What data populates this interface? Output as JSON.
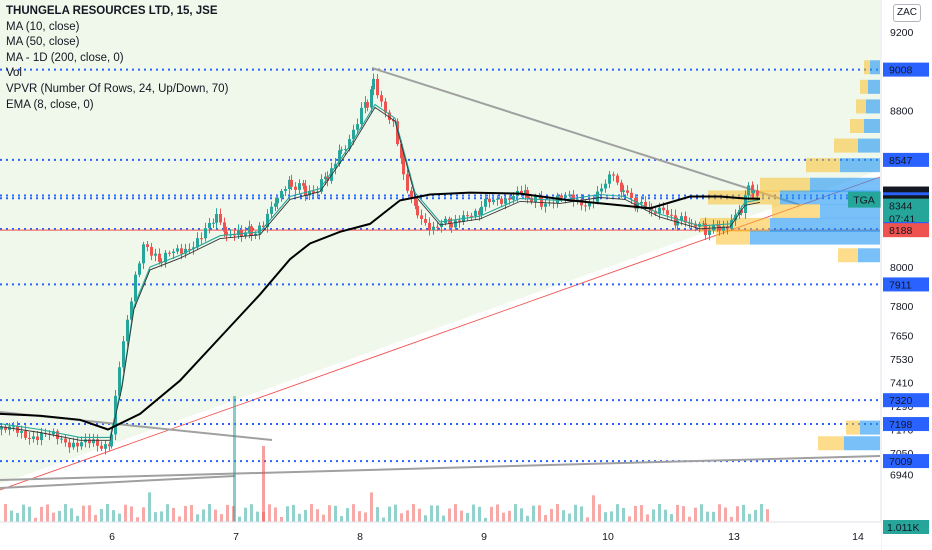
{
  "legend": {
    "title": "THUNGELA RESOURCES LTD, 15, JSE",
    "lines": [
      "MA (10, close)",
      "MA (50, close)",
      "MA - 1D (200, close, 0)",
      "Vol",
      "VPVR (Number Of Rows, 24, Up/Down, 70)",
      "EMA (8, close, 0)"
    ]
  },
  "currency_button": "ZAC",
  "colors": {
    "up": "#26a69a",
    "down": "#ef5350",
    "level_line": "#2962ff",
    "resistance_line": "#ef5350",
    "ma_black": "#000000",
    "trend_grey": "#a0a0a0",
    "vp_blue": "#2196f3",
    "vp_orange": "#fbc02d",
    "highlight_bg": "#e9f5e3"
  },
  "chart_data": {
    "type": "candlestick",
    "symbol": "TGA",
    "countdown": "07:41",
    "xlabels": [
      "6",
      "7",
      "8",
      "9",
      "10",
      "13",
      "14"
    ],
    "y_ticks": [
      9200,
      8800,
      8000,
      7800,
      7650,
      7530,
      7410,
      7290,
      7170,
      7050,
      6940
    ],
    "ylim": [
      6870,
      9340
    ],
    "levels": [
      9008,
      8547,
      8365,
      8351,
      8194,
      7911,
      7320,
      7198,
      7009
    ],
    "price_tags": [
      {
        "value": 9008,
        "style": "blue"
      },
      {
        "value": 8547,
        "style": "blue"
      },
      {
        "value": 8365,
        "style": "black"
      },
      {
        "value": 8361,
        "style": "blue"
      },
      {
        "value": 8351,
        "style": "black"
      },
      {
        "value": 8344,
        "style": "teal"
      },
      {
        "value": 8194,
        "style": "blue"
      },
      {
        "value": 8188,
        "style": "red"
      },
      {
        "value": 7911,
        "style": "blue"
      },
      {
        "value": 7320,
        "style": "blue"
      },
      {
        "value": 7198,
        "style": "blue"
      },
      {
        "value": 7009,
        "style": "blue"
      }
    ],
    "volume_label": "1.011K",
    "price_path": [
      [
        0,
        7170
      ],
      [
        20,
        7150
      ],
      [
        40,
        7140
      ],
      [
        60,
        7120
      ],
      [
        80,
        7100
      ],
      [
        100,
        7080
      ],
      [
        110,
        7130
      ],
      [
        118,
        7500
      ],
      [
        126,
        7750
      ],
      [
        134,
        7960
      ],
      [
        142,
        8100
      ],
      [
        150,
        8050
      ],
      [
        160,
        8030
      ],
      [
        180,
        8090
      ],
      [
        200,
        8150
      ],
      [
        215,
        8240
      ],
      [
        225,
        8160
      ],
      [
        240,
        8150
      ],
      [
        250,
        8180
      ],
      [
        262,
        8200
      ],
      [
        276,
        8350
      ],
      [
        290,
        8420
      ],
      [
        304,
        8400
      ],
      [
        316,
        8390
      ],
      [
        326,
        8470
      ],
      [
        340,
        8600
      ],
      [
        356,
        8740
      ],
      [
        366,
        8850
      ],
      [
        372,
        8940
      ],
      [
        380,
        8850
      ],
      [
        392,
        8740
      ],
      [
        402,
        8480
      ],
      [
        416,
        8280
      ],
      [
        432,
        8200
      ],
      [
        450,
        8220
      ],
      [
        466,
        8240
      ],
      [
        480,
        8300
      ],
      [
        496,
        8350
      ],
      [
        512,
        8370
      ],
      [
        526,
        8360
      ],
      [
        540,
        8340
      ],
      [
        556,
        8340
      ],
      [
        572,
        8350
      ],
      [
        588,
        8330
      ],
      [
        600,
        8380
      ],
      [
        612,
        8480
      ],
      [
        622,
        8380
      ],
      [
        636,
        8310
      ],
      [
        650,
        8280
      ],
      [
        662,
        8270
      ],
      [
        676,
        8230
      ],
      [
        690,
        8210
      ],
      [
        704,
        8190
      ],
      [
        718,
        8210
      ],
      [
        730,
        8230
      ],
      [
        740,
        8290
      ],
      [
        747,
        8450
      ],
      [
        752,
        8370
      ],
      [
        758,
        8350
      ]
    ],
    "ema8": [
      [
        0,
        7200
      ],
      [
        40,
        7170
      ],
      [
        80,
        7130
      ],
      [
        110,
        7130
      ],
      [
        122,
        7400
      ],
      [
        134,
        7800
      ],
      [
        150,
        8000
      ],
      [
        180,
        8060
      ],
      [
        220,
        8160
      ],
      [
        260,
        8180
      ],
      [
        290,
        8360
      ],
      [
        320,
        8400
      ],
      [
        350,
        8620
      ],
      [
        375,
        8830
      ],
      [
        395,
        8760
      ],
      [
        415,
        8380
      ],
      [
        440,
        8230
      ],
      [
        480,
        8260
      ],
      [
        520,
        8350
      ],
      [
        560,
        8340
      ],
      [
        600,
        8370
      ],
      [
        625,
        8360
      ],
      [
        660,
        8270
      ],
      [
        700,
        8210
      ],
      [
        730,
        8220
      ],
      [
        745,
        8330
      ],
      [
        760,
        8345
      ]
    ],
    "ma50": [
      [
        0,
        7250
      ],
      [
        40,
        7240
      ],
      [
        80,
        7220
      ],
      [
        108,
        7170
      ],
      [
        140,
        7250
      ],
      [
        180,
        7420
      ],
      [
        220,
        7640
      ],
      [
        260,
        7860
      ],
      [
        290,
        8040
      ],
      [
        310,
        8120
      ],
      [
        340,
        8180
      ],
      [
        370,
        8220
      ],
      [
        400,
        8340
      ],
      [
        430,
        8370
      ],
      [
        470,
        8380
      ],
      [
        520,
        8375
      ],
      [
        570,
        8340
      ],
      [
        610,
        8320
      ],
      [
        650,
        8300
      ],
      [
        690,
        8360
      ],
      [
        720,
        8360
      ],
      [
        745,
        8350
      ],
      [
        760,
        8348
      ]
    ],
    "vp_rows": [
      {
        "price": 9020,
        "up": 6,
        "down": 10
      },
      {
        "price": 8920,
        "up": 8,
        "down": 12
      },
      {
        "price": 8820,
        "up": 10,
        "down": 14
      },
      {
        "price": 8720,
        "up": 14,
        "down": 16
      },
      {
        "price": 8620,
        "up": 24,
        "down": 22
      },
      {
        "price": 8520,
        "up": 34,
        "down": 40
      },
      {
        "price": 8420,
        "up": 50,
        "down": 70
      },
      {
        "price": 8355,
        "up": 72,
        "down": 100
      },
      {
        "price": 8285,
        "up": 48,
        "down": 60
      },
      {
        "price": 8215,
        "up": 70,
        "down": 110
      },
      {
        "price": 8150,
        "up": 34,
        "down": 130
      },
      {
        "price": 8060,
        "up": 20,
        "down": 22
      },
      {
        "price": 7180,
        "up": 14,
        "down": 20
      },
      {
        "price": 7100,
        "up": 26,
        "down": 36
      }
    ]
  }
}
